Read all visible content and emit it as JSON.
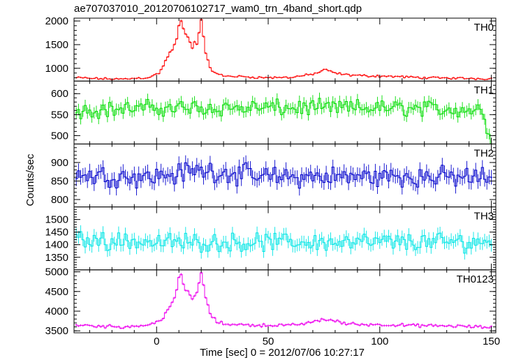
{
  "chart_data": {
    "type": "line",
    "title": "ae707037010_20120706102717_wam0_trn_4band_short.qdp",
    "xlabel": "Time [sec] 0 = 2012/07/06 10:27:17",
    "ylabel": "Counts/sec",
    "xlim": [
      -37,
      152
    ],
    "x_ticks": [
      0,
      50,
      100,
      150
    ],
    "grid": false,
    "panels": [
      {
        "name": "TH0",
        "color": "#ff0000",
        "ylim": [
          730,
          2060
        ],
        "y_ticks": [
          1000,
          1500,
          2000
        ],
        "baseline": 790,
        "noise": 18,
        "points": [
          [
            -36,
            800
          ],
          [
            -25,
            780
          ],
          [
            -15,
            770
          ],
          [
            -10,
            790
          ],
          [
            -5,
            800
          ],
          [
            -2,
            830
          ],
          [
            1,
            900
          ],
          [
            3,
            1050
          ],
          [
            5,
            1250
          ],
          [
            7,
            1400
          ],
          [
            9,
            1600
          ],
          [
            10,
            1900
          ],
          [
            11,
            1980
          ],
          [
            12,
            1850
          ],
          [
            13,
            1700
          ],
          [
            14,
            1650
          ],
          [
            15,
            1550
          ],
          [
            16,
            1450
          ],
          [
            17,
            1550
          ],
          [
            18,
            1500
          ],
          [
            19,
            1750
          ],
          [
            20,
            2040
          ],
          [
            21,
            1700
          ],
          [
            22,
            1300
          ],
          [
            24,
            1000
          ],
          [
            27,
            880
          ],
          [
            30,
            840
          ],
          [
            40,
            820
          ],
          [
            50,
            800
          ],
          [
            60,
            810
          ],
          [
            68,
            860
          ],
          [
            72,
            900
          ],
          [
            75,
            970
          ],
          [
            80,
            900
          ],
          [
            85,
            860
          ],
          [
            95,
            840
          ],
          [
            105,
            830
          ],
          [
            120,
            800
          ],
          [
            135,
            790
          ],
          [
            150,
            780
          ]
        ]
      },
      {
        "name": "TH1",
        "color": "#00dd00",
        "ylim": [
          480,
          630
        ],
        "y_ticks": [
          500,
          550,
          600
        ],
        "baseline": 566,
        "noise": 15,
        "points": [
          [
            -36,
            560
          ],
          [
            0,
            566
          ],
          [
            50,
            566
          ],
          [
            100,
            566
          ],
          [
            140,
            562
          ],
          [
            146,
            560
          ],
          [
            148,
            520
          ],
          [
            150,
            490
          ]
        ]
      },
      {
        "name": "TH2",
        "color": "#0000cc",
        "ylim": [
          780,
          950
        ],
        "y_ticks": [
          800,
          850,
          900
        ],
        "baseline": 862,
        "noise": 22,
        "points": [
          [
            -36,
            865
          ],
          [
            0,
            862
          ],
          [
            20,
            880
          ],
          [
            50,
            860
          ],
          [
            100,
            862
          ],
          [
            150,
            860
          ]
        ]
      },
      {
        "name": "TH3",
        "color": "#00e5e5",
        "ylim": [
          1300,
          1550
        ],
        "y_ticks": [
          1350,
          1400,
          1450,
          1500
        ],
        "baseline": 1410,
        "noise": 28,
        "points": [
          [
            -36,
            1420
          ],
          [
            0,
            1410
          ],
          [
            50,
            1410
          ],
          [
            100,
            1410
          ],
          [
            150,
            1410
          ]
        ]
      },
      {
        "name": "TH0123",
        "color": "#ee00ee",
        "ylim": [
          3450,
          5050
        ],
        "y_ticks": [
          3500,
          4000,
          4500,
          5000
        ],
        "baseline": 3620,
        "noise": 30,
        "points": [
          [
            -36,
            3650
          ],
          [
            -25,
            3620
          ],
          [
            -15,
            3600
          ],
          [
            -5,
            3640
          ],
          [
            -2,
            3680
          ],
          [
            1,
            3750
          ],
          [
            3,
            3850
          ],
          [
            5,
            4050
          ],
          [
            7,
            4200
          ],
          [
            9,
            4500
          ],
          [
            10,
            4850
          ],
          [
            11,
            4900
          ],
          [
            12,
            4700
          ],
          [
            13,
            4550
          ],
          [
            14,
            4500
          ],
          [
            15,
            4400
          ],
          [
            16,
            4300
          ],
          [
            17,
            4400
          ],
          [
            18,
            4450
          ],
          [
            19,
            4700
          ],
          [
            20,
            4990
          ],
          [
            21,
            4700
          ],
          [
            22,
            4300
          ],
          [
            24,
            3950
          ],
          [
            27,
            3720
          ],
          [
            30,
            3680
          ],
          [
            40,
            3650
          ],
          [
            50,
            3640
          ],
          [
            60,
            3640
          ],
          [
            68,
            3700
          ],
          [
            72,
            3750
          ],
          [
            75,
            3800
          ],
          [
            80,
            3750
          ],
          [
            85,
            3680
          ],
          [
            95,
            3660
          ],
          [
            105,
            3650
          ],
          [
            120,
            3630
          ],
          [
            135,
            3620
          ],
          [
            150,
            3580
          ]
        ]
      }
    ]
  }
}
